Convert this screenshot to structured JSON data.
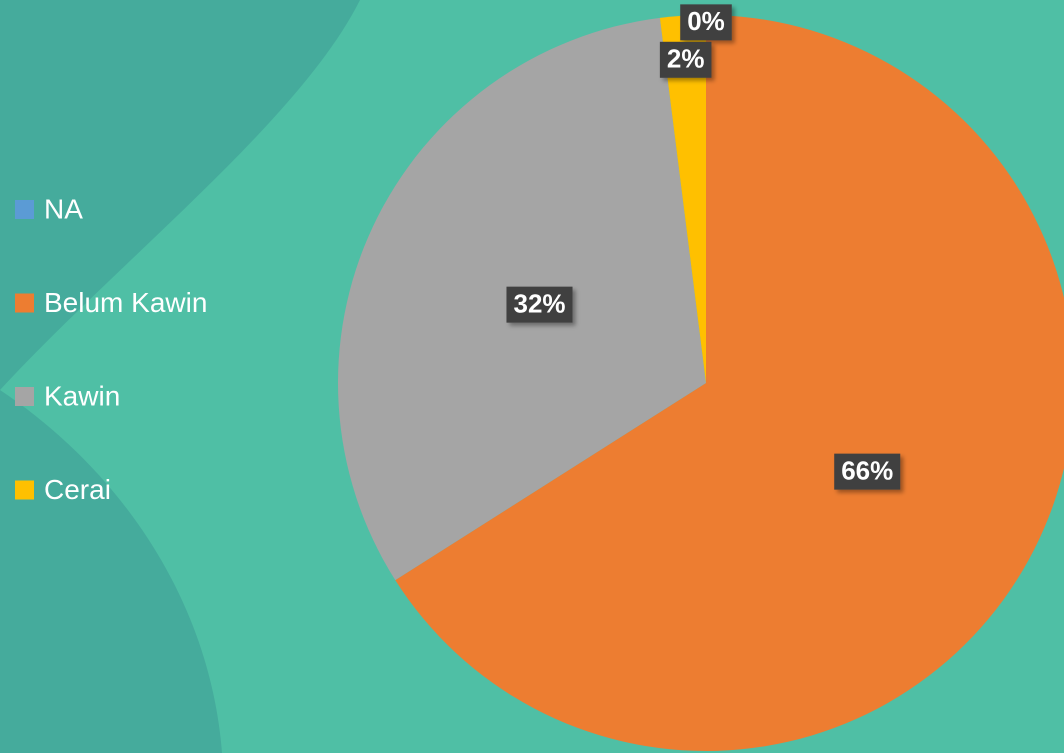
{
  "chart_data": {
    "type": "pie",
    "categories": [
      "NA",
      "Belum Kawin",
      "Kawin",
      "Cerai"
    ],
    "values": [
      0,
      66,
      32,
      2
    ],
    "value_labels": [
      "0%",
      "66%",
      "32%",
      "2%"
    ],
    "colors": [
      "#5b9bd5",
      "#ed7d31",
      "#a5a5a5",
      "#ffc000"
    ],
    "legend": "left"
  }
}
